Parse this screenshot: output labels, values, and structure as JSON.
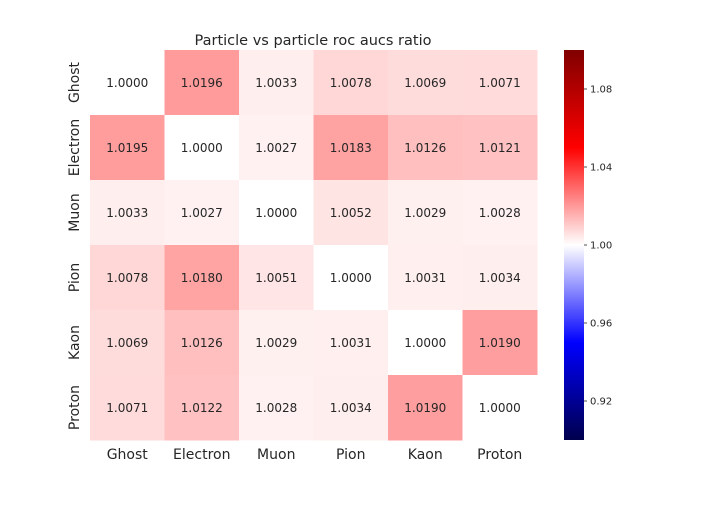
{
  "chart_data": {
    "type": "heatmap",
    "title": "Particle vs particle roc aucs ratio",
    "xlabel": "",
    "ylabel": "",
    "categories": [
      "Ghost",
      "Electron",
      "Muon",
      "Pion",
      "Kaon",
      "Proton"
    ],
    "y_categories": [
      "Ghost",
      "Electron",
      "Muon",
      "Pion",
      "Kaon",
      "Proton"
    ],
    "values": [
      [
        1.0,
        1.0196,
        1.0033,
        1.0078,
        1.0069,
        1.0071
      ],
      [
        1.0195,
        1.0,
        1.0027,
        1.0183,
        1.0126,
        1.0121
      ],
      [
        1.0033,
        1.0027,
        1.0,
        1.0052,
        1.0029,
        1.0028
      ],
      [
        1.0078,
        1.018,
        1.0051,
        1.0,
        1.0031,
        1.0034
      ],
      [
        1.0069,
        1.0126,
        1.0029,
        1.0031,
        1.0,
        1.019
      ],
      [
        1.0071,
        1.0122,
        1.0028,
        1.0034,
        1.019,
        1.0
      ]
    ],
    "value_format_decimals": 4,
    "colormap": "seismic",
    "colorbar": {
      "range": [
        0.9,
        1.1
      ],
      "ticks": [
        "0.92",
        "0.96",
        "1.00",
        "1.04",
        "1.08"
      ],
      "tick_values": [
        0.92,
        0.96,
        1.0,
        1.04,
        1.08
      ]
    },
    "grid": false,
    "legend": "colorbar-right"
  },
  "colors": {
    "text": "#262626",
    "background": "#ffffff"
  }
}
